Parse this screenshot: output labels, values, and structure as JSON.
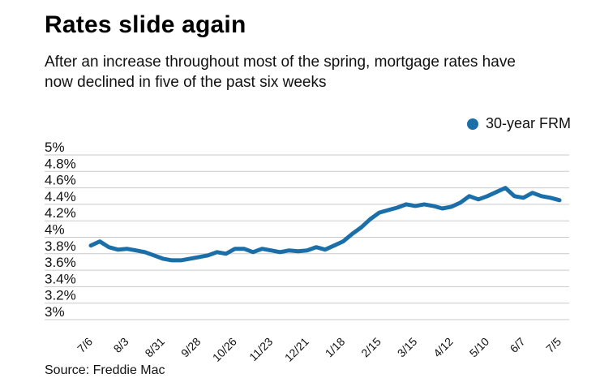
{
  "page": {
    "title": "Rates slide again",
    "subtitle": "After an increase throughout most of the spring, mortgage rates have now declined in five of the past six weeks",
    "source": "Source: Freddie Mac"
  },
  "legend": {
    "label": "30-year FRM"
  },
  "colors": {
    "line": "#1B6FA8",
    "grid": "#C9C9C9",
    "text": "#111111"
  },
  "chart_data": {
    "type": "line",
    "title": "Rates slide again",
    "subtitle": "After an increase throughout most of the spring, mortgage rates have now declined in five of the past six weeks",
    "series_name": "30-year FRM",
    "legend_position": "top-right",
    "grid": "horizontal",
    "ylim": [
      3,
      5
    ],
    "y_ticks": [
      {
        "label": "5%",
        "value": 5.0
      },
      {
        "label": "4.8%",
        "value": 4.8
      },
      {
        "label": "4.6%",
        "value": 4.6
      },
      {
        "label": "4.4%",
        "value": 4.4
      },
      {
        "label": "4.2%",
        "value": 4.2
      },
      {
        "label": "4%",
        "value": 4.0
      },
      {
        "label": "3.8%",
        "value": 3.8
      },
      {
        "label": "3.6%",
        "value": 3.6
      },
      {
        "label": "3.4%",
        "value": 3.4
      },
      {
        "label": "3.2%",
        "value": 3.2
      },
      {
        "label": "3%",
        "value": 3.0
      }
    ],
    "x_ticks": [
      {
        "label": "7/6",
        "index": 0
      },
      {
        "label": "8/3",
        "index": 4
      },
      {
        "label": "8/31",
        "index": 8
      },
      {
        "label": "9/28",
        "index": 12
      },
      {
        "label": "10/26",
        "index": 16
      },
      {
        "label": "11/23",
        "index": 20
      },
      {
        "label": "12/21",
        "index": 24
      },
      {
        "label": "1/18",
        "index": 28
      },
      {
        "label": "2/15",
        "index": 32
      },
      {
        "label": "3/15",
        "index": 36
      },
      {
        "label": "4/12",
        "index": 40
      },
      {
        "label": "5/10",
        "index": 44
      },
      {
        "label": "6/7",
        "index": 48
      },
      {
        "label": "7/5",
        "index": 52
      }
    ],
    "values": [
      3.9,
      3.95,
      3.88,
      3.85,
      3.86,
      3.84,
      3.82,
      3.78,
      3.74,
      3.72,
      3.72,
      3.74,
      3.76,
      3.78,
      3.82,
      3.8,
      3.86,
      3.86,
      3.82,
      3.86,
      3.84,
      3.82,
      3.84,
      3.83,
      3.84,
      3.88,
      3.85,
      3.9,
      3.95,
      4.04,
      4.12,
      4.22,
      4.3,
      4.33,
      4.36,
      4.4,
      4.38,
      4.4,
      4.38,
      4.35,
      4.37,
      4.42,
      4.5,
      4.46,
      4.5,
      4.55,
      4.6,
      4.5,
      4.48,
      4.54,
      4.5,
      4.48,
      4.45
    ],
    "source": "Source: Freddie Mac"
  }
}
